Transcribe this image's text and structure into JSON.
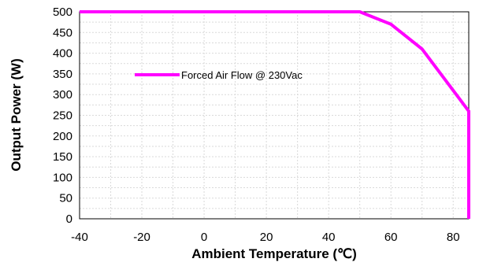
{
  "chart_data": {
    "type": "line",
    "xlabel": "Ambient Temperature (℃)",
    "ylabel": "Output Power (W)",
    "xlim": [
      -40,
      85
    ],
    "ylim": [
      0,
      500
    ],
    "x_ticks": [
      "-40",
      "-20",
      "0",
      "20",
      "40",
      "60",
      "80"
    ],
    "x_tick_values": [
      -40,
      -20,
      0,
      20,
      40,
      60,
      80
    ],
    "y_ticks": [
      "0",
      "50",
      "100",
      "150",
      "200",
      "250",
      "300",
      "350",
      "400",
      "450",
      "500"
    ],
    "y_tick_values": [
      0,
      50,
      100,
      150,
      200,
      250,
      300,
      350,
      400,
      450,
      500
    ],
    "grid": true,
    "legend_position": "center-left",
    "series": [
      {
        "name": "Forced Air Flow @ 230Vac",
        "color": "#ff00ff",
        "x": [
          -40,
          50,
          60,
          70,
          85,
          85
        ],
        "y": [
          500,
          500,
          470,
          410,
          260,
          0
        ]
      }
    ]
  }
}
